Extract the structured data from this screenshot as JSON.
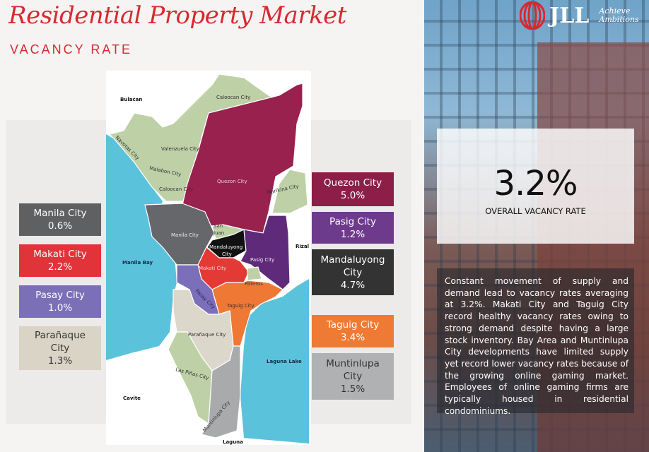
{
  "header": {
    "title": "Residential Property Market",
    "subtitle": "VACANCY RATE"
  },
  "brand": {
    "logo_text": "JLL",
    "tagline_line1": "Achieve",
    "tagline_line2": "Ambitions",
    "logo_color": "#d8282f"
  },
  "overall": {
    "value": "3.2%",
    "label": "OVERALL VACANCY RATE"
  },
  "description": "Constant movement of supply and demand lead to vacancy rates averaging at 3.2%. Makati City and Taguig City record healthy vacancy rates owing to strong demand despite having a large stock inventory. Bay Area and Muntinlupa City developments have limited supply yet record lower vacancy rates because of the growing online gaming market. Employees of online gaming firms are typically housed in residential condominiums.",
  "cities": [
    {
      "name": "Manila City",
      "rate": "0.6%",
      "color": "#5f6062"
    },
    {
      "name": "Makati City",
      "rate": "2.2%",
      "color": "#e0333a"
    },
    {
      "name": "Pasay City",
      "rate": "1.0%",
      "color": "#7b6fb8"
    },
    {
      "name": "Parañaque City",
      "rate": "1.3%",
      "color": "#d9d4c6"
    },
    {
      "name": "Quezon City",
      "rate": "5.0%",
      "color": "#8d1e47"
    },
    {
      "name": "Pasig City",
      "rate": "1.2%",
      "color": "#6e3b8c"
    },
    {
      "name": "Mandaluyong City",
      "rate": "4.7%",
      "color": "#333333"
    },
    {
      "name": "Taguig City",
      "rate": "3.4%",
      "color": "#ee7a33"
    },
    {
      "name": "Muntinlupa City",
      "rate": "1.5%",
      "color": "#b0b1b3"
    }
  ],
  "map_labels": {
    "bulacan": "Bulacan",
    "caloocan_n": "Caloocan City",
    "navotas": "Navotas City",
    "valenzuela": "Valenzuela City",
    "malabon": "Malabon City",
    "caloocan_s": "Caloocan City",
    "quezon": "Quezon City",
    "marikina": "Marikina City",
    "manila": "Manila City",
    "san": "San",
    "juan": "Juan",
    "mandaluyong1": "Mandaluyong",
    "mandaluyong2": "City",
    "rizal": "Rizal",
    "manila_bay": "Manila Bay",
    "pasig": "Pasig City",
    "makati": "Makati City",
    "pateros": "Pateros",
    "pasay": "Pasay City",
    "taguig": "Taguig City",
    "paranaque": "Parañaque City",
    "laguna_lake": "Laguna Lake",
    "las_pinas": "Las Piñas City",
    "cavite": "Cavite",
    "muntinlupa": "Muntinlupa City",
    "laguna": "Laguna"
  },
  "map_colors": {
    "water": "#5bc2dc",
    "green": "#bdd0a6"
  }
}
